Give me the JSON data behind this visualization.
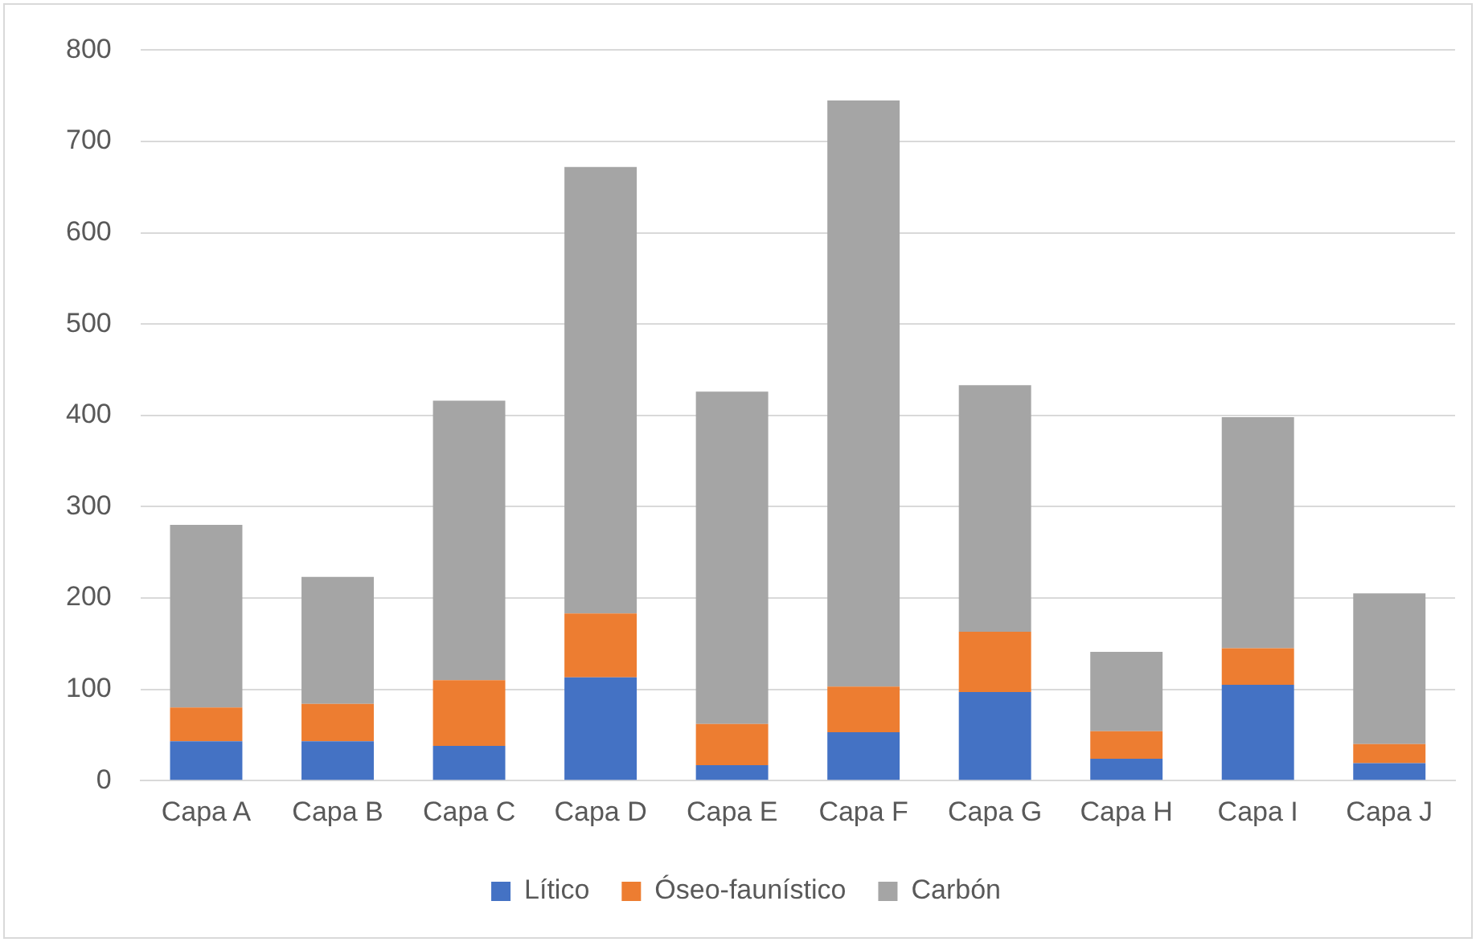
{
  "chart_data": {
    "type": "bar",
    "stacked": true,
    "categories": [
      "Capa A",
      "Capa B",
      "Capa C",
      "Capa D",
      "Capa E",
      "Capa F",
      "Capa G",
      "Capa H",
      "Capa I",
      "Capa J"
    ],
    "series": [
      {
        "name": "Lítico",
        "color": "#4472c4",
        "values": [
          43,
          43,
          38,
          113,
          17,
          53,
          97,
          24,
          105,
          19
        ]
      },
      {
        "name": "Óseo-faunístico",
        "color": "#ed7d31",
        "values": [
          37,
          41,
          72,
          70,
          45,
          50,
          66,
          30,
          40,
          21
        ]
      },
      {
        "name": "Carbón",
        "color": "#a5a5a5",
        "values": [
          200,
          139,
          306,
          489,
          364,
          642,
          270,
          87,
          253,
          165
        ]
      }
    ],
    "ylim": [
      0,
      800
    ],
    "yticks": [
      0,
      100,
      200,
      300,
      400,
      500,
      600,
      700,
      800
    ],
    "grid": "y",
    "legend": "bottom"
  }
}
